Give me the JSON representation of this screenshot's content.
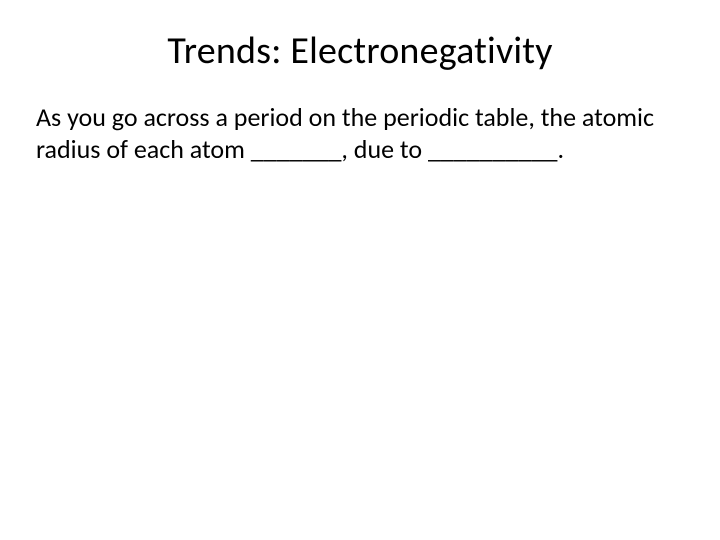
{
  "slide": {
    "title": "Trends: Electronegativity",
    "body": "As you go across a period on the periodic table, the atomic radius of each atom _______, due to __________.",
    "background_color": "#ffffff",
    "text_color": "#000000",
    "title_fontsize": 38,
    "body_fontsize": 26,
    "font_family": "Calibri"
  }
}
